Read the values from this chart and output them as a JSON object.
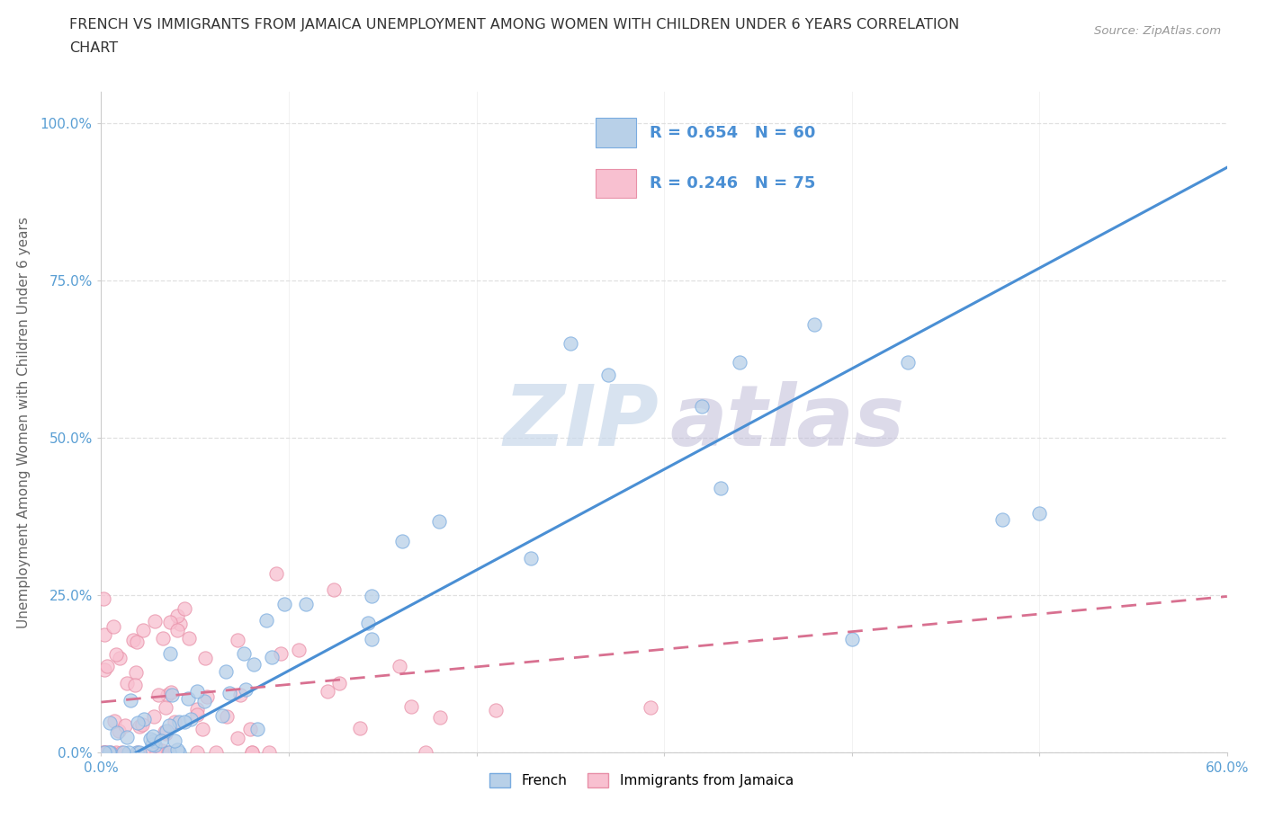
{
  "title_line1": "FRENCH VS IMMIGRANTS FROM JAMAICA UNEMPLOYMENT AMONG WOMEN WITH CHILDREN UNDER 6 YEARS CORRELATION",
  "title_line2": "CHART",
  "source_text": "Source: ZipAtlas.com",
  "ylabel": "Unemployment Among Women with Children Under 6 years",
  "xlim": [
    0.0,
    0.6
  ],
  "ylim": [
    0.0,
    1.05
  ],
  "french_R": 0.654,
  "french_N": 60,
  "jamaica_R": 0.246,
  "jamaica_N": 75,
  "french_fill_color": "#b8d0e8",
  "french_edge_color": "#7aace0",
  "french_line_color": "#4a8fd4",
  "jamaica_fill_color": "#f8c0d0",
  "jamaica_edge_color": "#e890a8",
  "jamaica_line_color": "#d87090",
  "watermark_zip_color": "#c8d8ea",
  "watermark_atlas_color": "#c0bcd8",
  "bg_color": "#ffffff",
  "grid_color": "#e0e0e0",
  "axis_tick_color": "#5a9fd4",
  "ylabel_color": "#666666",
  "title_color": "#333333",
  "source_color": "#999999",
  "legend_text_color": "#4a8fd4",
  "box_edge_color": "#cccccc"
}
